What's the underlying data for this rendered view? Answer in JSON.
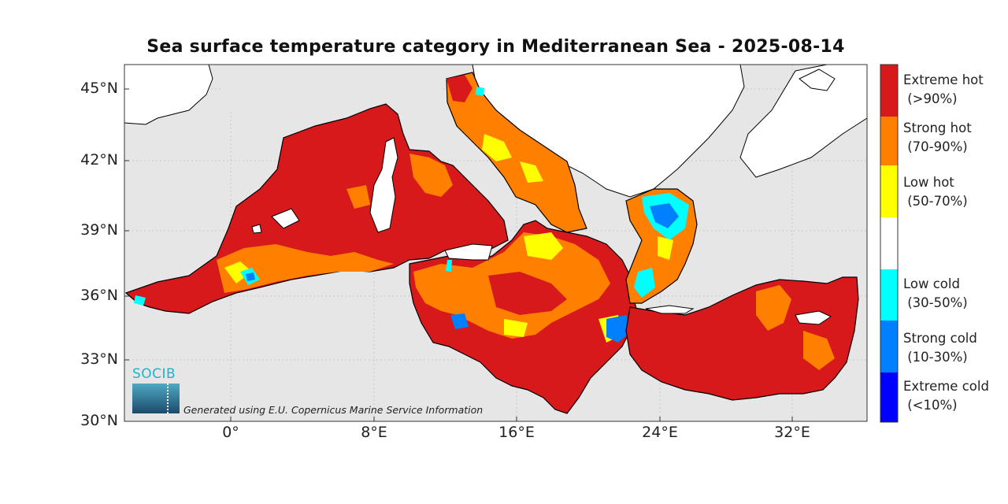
{
  "title": "Sea surface temperature category in Mediterranean Sea - 2025-08-14",
  "lat_ticks": [
    "45°N",
    "42°N",
    "39°N",
    "36°N",
    "33°N",
    "30°N"
  ],
  "lon_ticks": [
    "0°",
    "8°E",
    "16°E",
    "24°E",
    "32°E"
  ],
  "legend": [
    {
      "label": "Extreme hot",
      "range": "(>90%)",
      "color": "#d7191c"
    },
    {
      "label": "Strong hot",
      "range": "(70-90%)",
      "color": "#ff7f00"
    },
    {
      "label": "Low hot",
      "range": "(50-70%)",
      "color": "#ffff00"
    },
    {
      "label": "",
      "range": "",
      "color": "#ffffff"
    },
    {
      "label": "Low cold",
      "range": "(30-50%)",
      "color": "#00ffff"
    },
    {
      "label": "Strong cold",
      "range": "(10-30%)",
      "color": "#0080ff"
    },
    {
      "label": "Extreme cold",
      "range": "(<10%)",
      "color": "#0000ff"
    }
  ],
  "logo": "SOCIB",
  "credit": "Generated using E.U. Copernicus Marine Service Information",
  "colors": {
    "land": "#ffffff",
    "no_data": "#e6e6e6",
    "sea_default": "#d7191c"
  }
}
